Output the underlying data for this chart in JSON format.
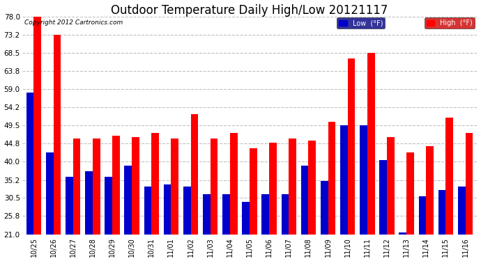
{
  "title": "Outdoor Temperature Daily High/Low 20121117",
  "copyright": "Copyright 2012 Cartronics.com",
  "categories": [
    "10/25",
    "10/26",
    "10/27",
    "10/28",
    "10/29",
    "10/30",
    "10/31",
    "11/01",
    "11/02",
    "11/03",
    "11/04",
    "11/05",
    "11/06",
    "11/07",
    "11/08",
    "11/09",
    "11/10",
    "11/11",
    "11/12",
    "11/13",
    "11/14",
    "11/15",
    "11/16"
  ],
  "low_values": [
    58.0,
    42.5,
    36.0,
    37.5,
    36.0,
    39.0,
    33.5,
    34.0,
    33.5,
    31.5,
    31.5,
    29.5,
    31.5,
    31.5,
    39.0,
    35.0,
    49.5,
    49.5,
    40.5,
    21.5,
    31.0,
    32.5,
    33.5
  ],
  "high_values": [
    78.0,
    73.2,
    46.0,
    46.0,
    46.8,
    46.5,
    47.5,
    46.0,
    52.5,
    46.0,
    47.5,
    43.5,
    45.0,
    46.0,
    45.5,
    50.5,
    67.0,
    68.5,
    46.5,
    42.5,
    44.0,
    51.5,
    47.5
  ],
  "ymin": 21.0,
  "ymax": 78.0,
  "yticks": [
    21.0,
    25.8,
    30.5,
    35.2,
    40.0,
    44.8,
    49.5,
    54.2,
    59.0,
    63.8,
    68.5,
    73.2,
    78.0
  ],
  "bar_width": 0.38,
  "low_color": "#0000cc",
  "high_color": "#ff0000",
  "bg_color": "#ffffff",
  "grid_color": "#c0c0c0",
  "title_fontsize": 12,
  "legend_low_label": "Low  (°F)",
  "legend_high_label": "High  (°F)",
  "legend_bg": "#000080",
  "legend_high_bg": "#cc0000"
}
